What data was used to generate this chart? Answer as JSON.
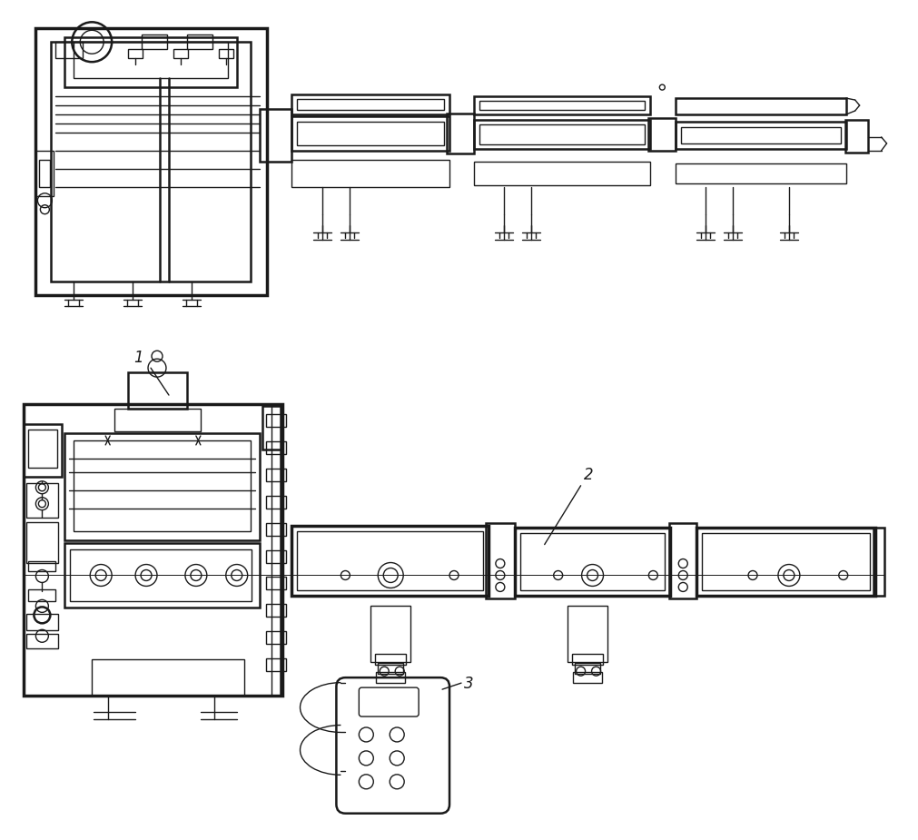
{
  "background_color": "#ffffff",
  "line_color": "#1a1a1a",
  "line_width": 1.0,
  "fig_width": 10.11,
  "fig_height": 9.25,
  "label_1": "1",
  "label_2": "2",
  "label_3": "3",
  "label_fontsize": 12
}
